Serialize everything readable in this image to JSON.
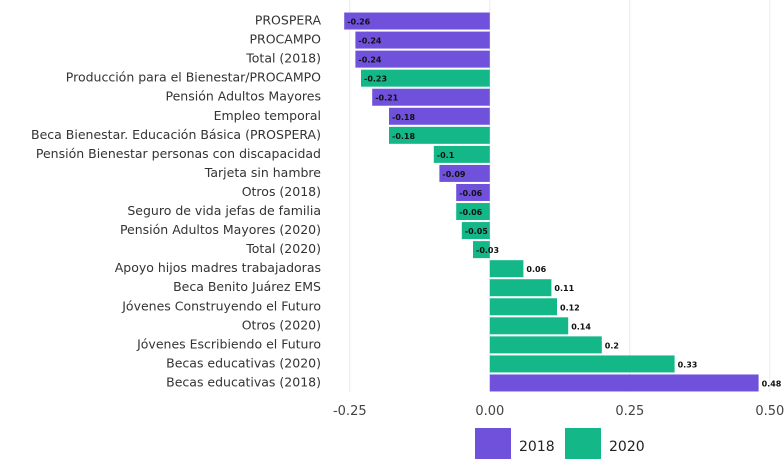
{
  "chart_data": {
    "type": "bar",
    "orientation": "horizontal",
    "categories": [
      "PROSPERA",
      "PROCAMPO",
      "Total (2018)",
      "Producción para el Bienestar/PROCAMPO",
      "Pensión Adultos Mayores",
      "Empleo temporal",
      "Beca Bienestar. Educación Básica (PROSPERA)",
      "Pensión Bienestar personas con discapacidad",
      "Tarjeta sin hambre",
      "Otros (2018)",
      "Seguro de vida jefas de familia",
      "Pensión Adultos Mayores (2020)",
      "Total (2020)",
      "Apoyo hijos madres trabajadoras",
      "Beca Benito Juárez EMS",
      "Jóvenes Construyendo el Futuro",
      "Otros (2020)",
      "Jóvenes Escribiendo el Futuro",
      "Becas educativas (2020)",
      "Becas educativas (2018)"
    ],
    "series": [
      {
        "name": "2018",
        "color": "#6f51dc",
        "values": [
          -0.26,
          -0.24,
          -0.24,
          null,
          -0.21,
          -0.18,
          null,
          null,
          -0.09,
          -0.06,
          null,
          null,
          null,
          null,
          null,
          null,
          null,
          null,
          null,
          0.48
        ]
      },
      {
        "name": "2020",
        "color": "#14b888",
        "values": [
          null,
          null,
          null,
          -0.23,
          null,
          null,
          -0.18,
          -0.1,
          null,
          null,
          -0.06,
          -0.05,
          -0.03,
          0.06,
          0.11,
          0.12,
          0.14,
          0.2,
          0.33,
          null
        ]
      }
    ],
    "xlim": [
      -0.28,
      0.52
    ],
    "xticks": [
      -0.25,
      {
        "value": 0,
        "label": "0.00"
      },
      0.25,
      {
        "value": 0.5,
        "label": "0.50"
      }
    ],
    "grid": true,
    "legend": "bottom"
  }
}
